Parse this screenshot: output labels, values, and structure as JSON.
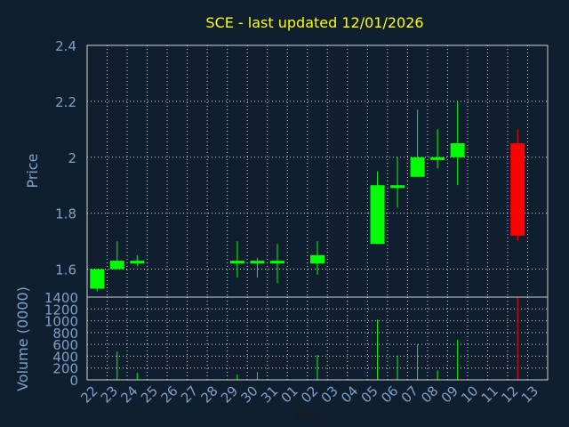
{
  "chart_data": [
    {
      "type": "candlestick",
      "title": "SCE - last updated 12/01/2026",
      "ylabel": "Price",
      "xlabel": "",
      "ylim": [
        1.5,
        2.4
      ],
      "yticks": [
        "1.6",
        "1.8",
        "2",
        "2.2",
        "2.4"
      ],
      "grid": true,
      "up_color": "#00ff00",
      "down_color": "#ff0000",
      "candles": [
        {
          "day": "22",
          "open": 1.53,
          "high": 1.6,
          "low": 1.52,
          "close": 1.6
        },
        {
          "day": "23",
          "open": 1.6,
          "high": 1.7,
          "low": 1.6,
          "close": 1.63
        },
        {
          "day": "24",
          "open": 1.62,
          "high": 1.65,
          "low": 1.61,
          "close": 1.63
        },
        {
          "day": "29",
          "open": 1.62,
          "high": 1.7,
          "low": 1.57,
          "close": 1.63
        },
        {
          "day": "30",
          "open": 1.62,
          "high": 1.64,
          "low": 1.57,
          "close": 1.63
        },
        {
          "day": "31",
          "open": 1.62,
          "high": 1.69,
          "low": 1.55,
          "close": 1.63
        },
        {
          "day": "02",
          "open": 1.62,
          "high": 1.7,
          "low": 1.58,
          "close": 1.65
        },
        {
          "day": "05",
          "open": 1.69,
          "high": 1.95,
          "low": 1.69,
          "close": 1.9
        },
        {
          "day": "06",
          "open": 1.89,
          "high": 2.0,
          "low": 1.82,
          "close": 1.9
        },
        {
          "day": "07",
          "open": 1.93,
          "high": 2.17,
          "low": 1.93,
          "close": 2.0
        },
        {
          "day": "08",
          "open": 1.99,
          "high": 2.1,
          "low": 1.96,
          "close": 2.0
        },
        {
          "day": "09",
          "open": 2.0,
          "high": 2.2,
          "low": 1.9,
          "close": 2.05
        },
        {
          "day": "12",
          "open": 2.05,
          "high": 2.1,
          "low": 1.7,
          "close": 1.72
        }
      ]
    },
    {
      "type": "bar",
      "ylabel": "Volume (0000)",
      "xlabel": "Day",
      "ylim": [
        0,
        1400
      ],
      "yticks": [
        "0",
        "200",
        "400",
        "600",
        "800",
        "1000",
        "1200",
        "1400"
      ],
      "grid": true,
      "categories": [
        "22",
        "23",
        "24",
        "25",
        "26",
        "27",
        "28",
        "29",
        "30",
        "31",
        "01",
        "02",
        "03",
        "04",
        "05",
        "06",
        "07",
        "08",
        "09",
        "10",
        "11",
        "12",
        "13"
      ],
      "values": [
        0,
        480,
        120,
        0,
        0,
        0,
        0,
        90,
        130,
        0,
        0,
        420,
        0,
        0,
        1020,
        410,
        600,
        160,
        680,
        0,
        0,
        1400,
        0
      ],
      "bar_colors": [
        "#00ff00",
        "#00ff00",
        "#00ff00",
        "#00ff00",
        "#00ff00",
        "#00ff00",
        "#00ff00",
        "#00ff00",
        "#00ff00",
        "#00ff00",
        "#00ff00",
        "#00ff00",
        "#00ff00",
        "#00ff00",
        "#00ff00",
        "#00ff00",
        "#00ff00",
        "#00ff00",
        "#00ff00",
        "#00ff00",
        "#00ff00",
        "#ff0000",
        "#00ff00"
      ]
    }
  ]
}
